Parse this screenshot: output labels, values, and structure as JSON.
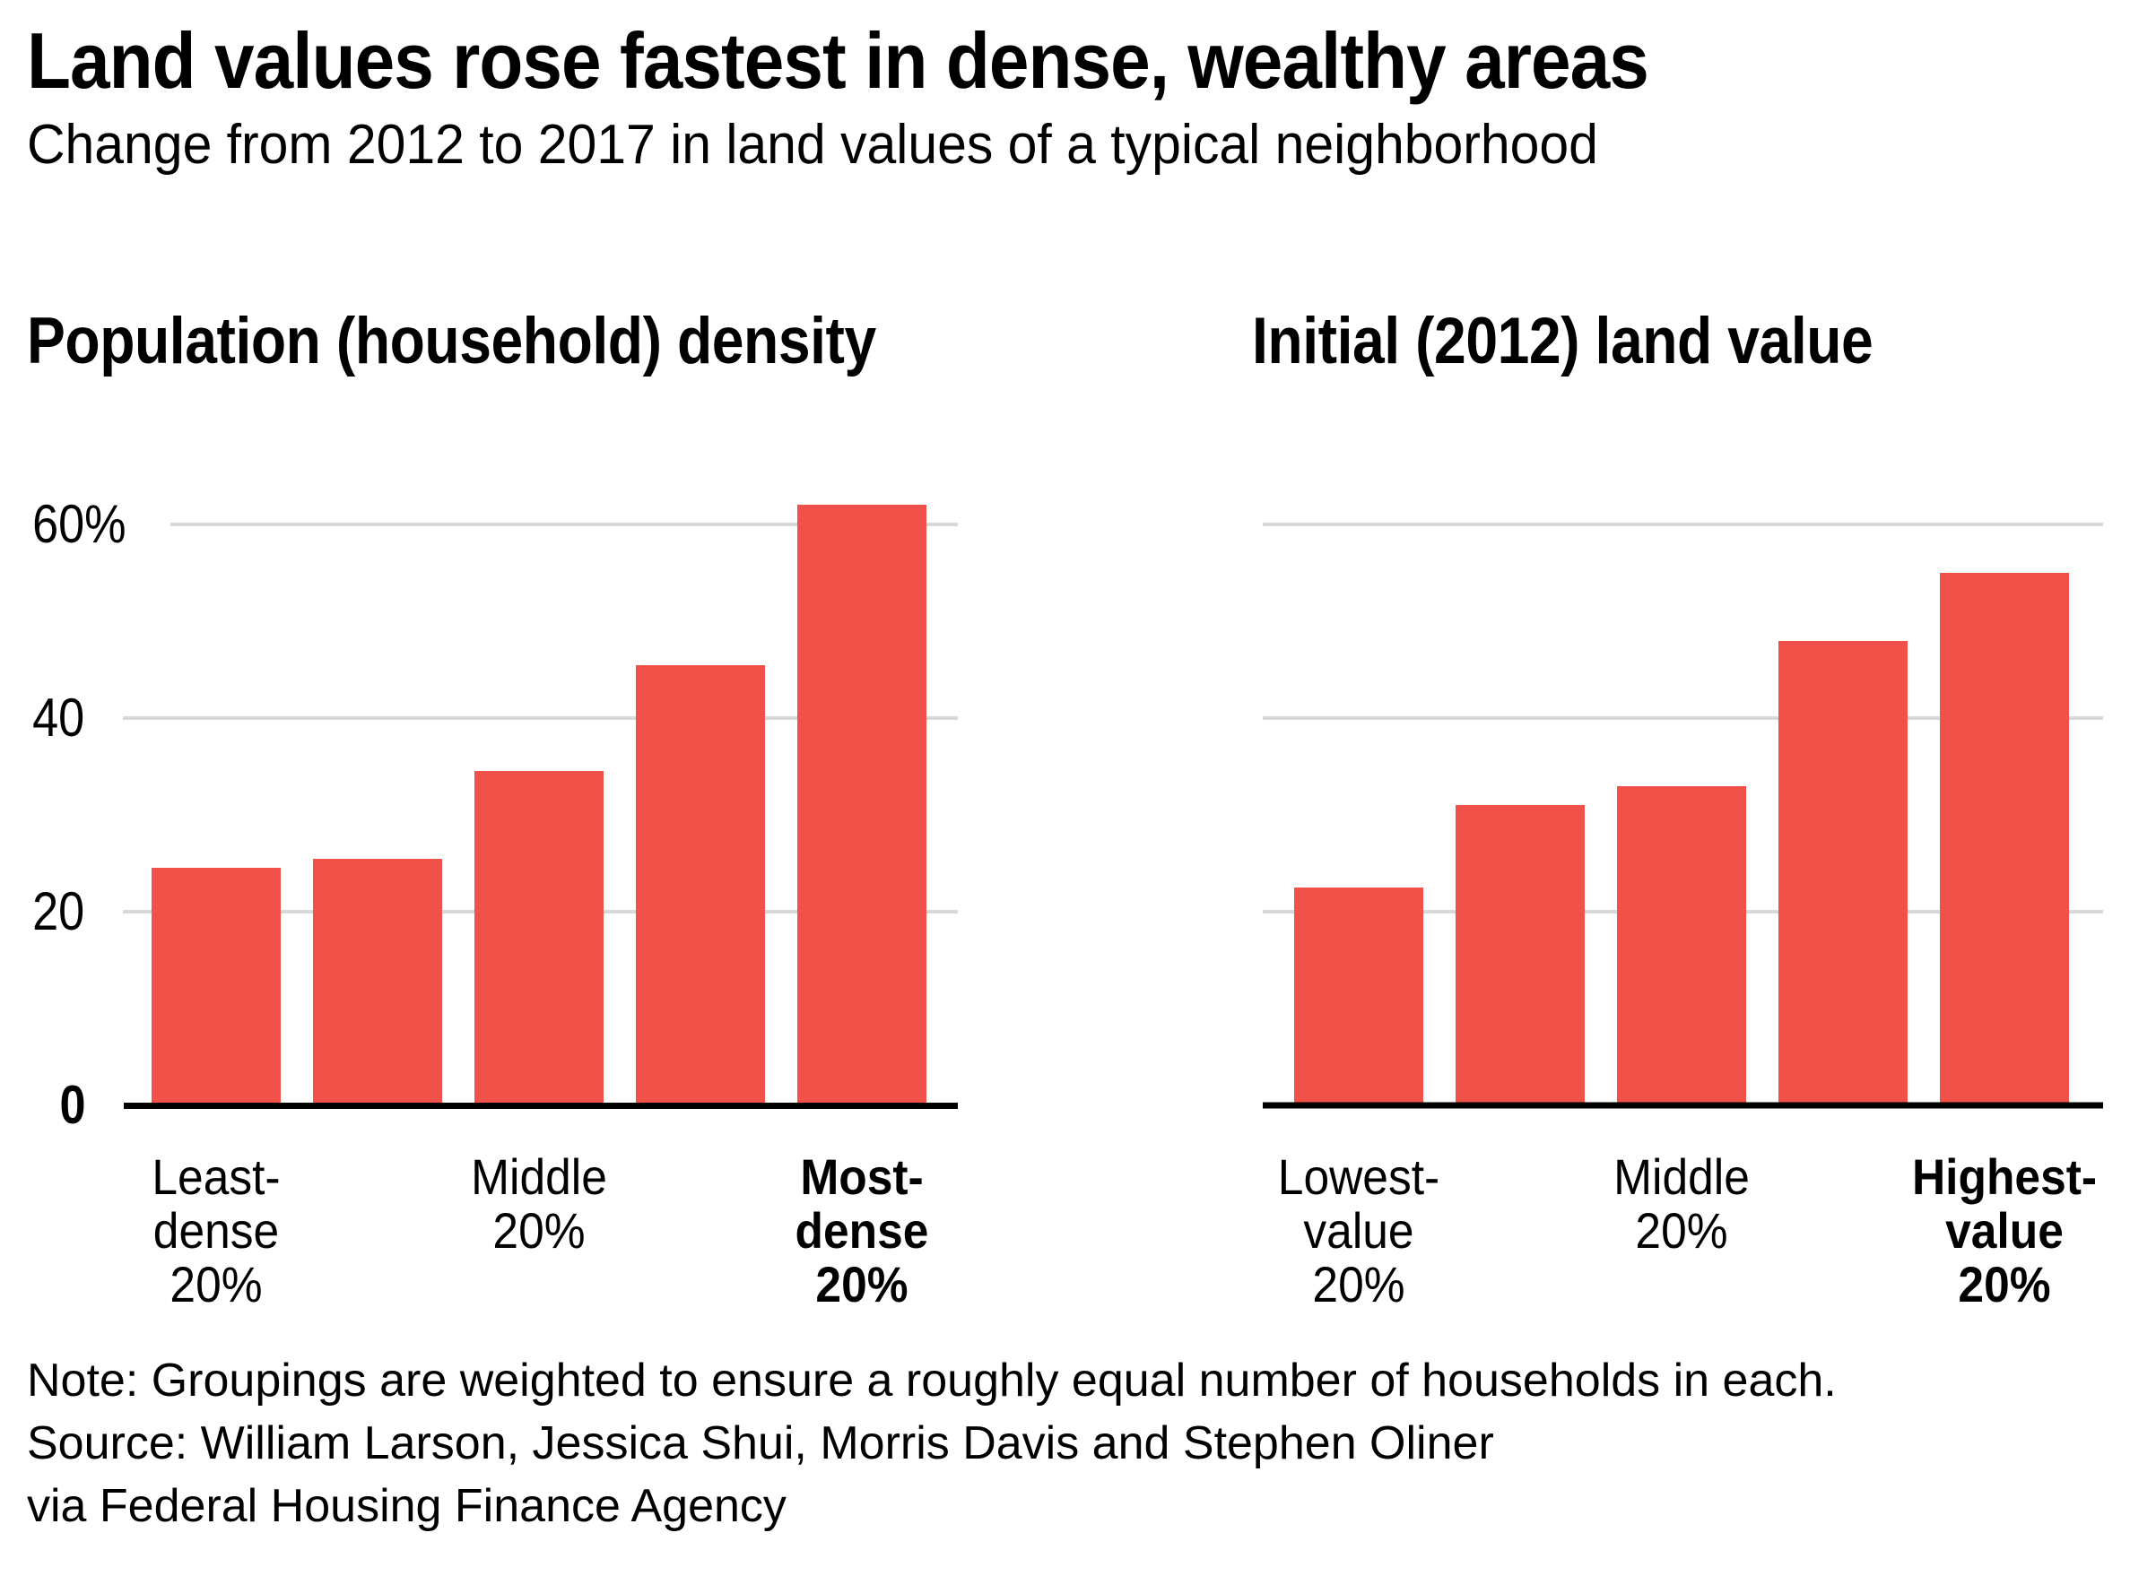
{
  "page": {
    "title": "Land values rose fastest in dense, wealthy areas",
    "subtitle": "Change from 2012 to 2017 in land values of a typical neighborhood"
  },
  "chart_data": [
    {
      "type": "bar",
      "title": "Population (household) density",
      "unit": "%",
      "ylim": [
        0,
        65
      ],
      "grid": true,
      "legend": "none",
      "yticks": [
        {
          "value": 60,
          "label": "60%",
          "bold": false
        },
        {
          "value": 40,
          "label": "40",
          "bold": false
        },
        {
          "value": 20,
          "label": "20",
          "bold": false
        },
        {
          "value": 0,
          "label": "0",
          "bold": true
        }
      ],
      "show_ytick_labels": true,
      "categories": [
        "Least-dense 20%",
        "",
        "Middle 20%",
        "",
        "Most-dense 20%"
      ],
      "values": [
        24.5,
        25.5,
        34.5,
        45.5,
        62
      ],
      "xtick_labels": [
        {
          "bar_index": 0,
          "lines": [
            "Least-",
            "dense",
            "20%"
          ],
          "bold": false
        },
        {
          "bar_index": 2,
          "lines": [
            "Middle",
            "20%"
          ],
          "bold": false
        },
        {
          "bar_index": 4,
          "lines": [
            "Most-",
            "dense",
            "20%"
          ],
          "bold": true
        }
      ]
    },
    {
      "type": "bar",
      "title": "Initial (2012) land value",
      "unit": "%",
      "ylim": [
        0,
        65
      ],
      "grid": true,
      "legend": "none",
      "yticks": [
        {
          "value": 60,
          "label": "",
          "bold": false
        },
        {
          "value": 40,
          "label": "",
          "bold": false
        },
        {
          "value": 20,
          "label": "",
          "bold": false
        },
        {
          "value": 0,
          "label": "",
          "bold": true
        }
      ],
      "show_ytick_labels": false,
      "categories": [
        "Lowest-value 20%",
        "",
        "Middle 20%",
        "",
        "Highest-value 20%"
      ],
      "values": [
        22.5,
        31,
        33,
        48,
        55
      ],
      "xtick_labels": [
        {
          "bar_index": 0,
          "lines": [
            "Lowest-",
            "value",
            "20%"
          ],
          "bold": false
        },
        {
          "bar_index": 2,
          "lines": [
            "Middle",
            "20%"
          ],
          "bold": false
        },
        {
          "bar_index": 4,
          "lines": [
            "Highest-",
            "value",
            "20%"
          ],
          "bold": true
        }
      ]
    }
  ],
  "footer": {
    "note": "Note: Groupings are weighted to ensure a roughly equal number of households in each.",
    "source": "Source: William Larson, Jessica Shui, Morris Davis and Stephen Oliner",
    "via": "via Federal Housing Finance Agency"
  },
  "colors": {
    "bar": "#F05149",
    "gridline": "#D8D8D8",
    "baseline": "#000000",
    "text": "#000000"
  }
}
